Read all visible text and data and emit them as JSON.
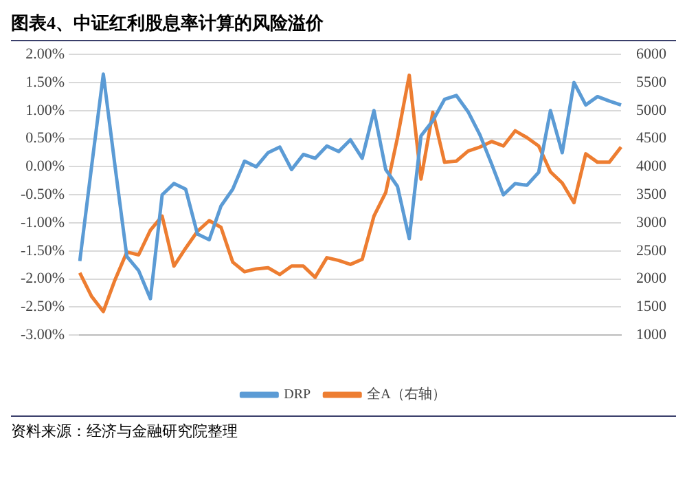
{
  "chart_data": {
    "type": "line",
    "title": "图表4、中证红利股息率计算的风险溢价",
    "annotations": [
      "资料来源：经济与金融研究院整理"
    ],
    "categories": [
      null,
      null,
      null,
      null,
      null,
      null,
      null,
      null,
      null,
      null,
      null,
      null,
      null,
      null,
      null,
      null,
      null,
      null,
      null,
      null,
      null,
      null,
      null,
      null,
      null,
      null,
      null,
      null,
      null,
      null,
      null,
      null,
      null,
      null,
      null,
      null,
      null,
      null,
      null,
      null,
      null,
      null,
      null,
      null,
      null,
      null,
      null
    ],
    "series": [
      {
        "name": "DRP",
        "color": "#5b9bd5",
        "values": [
          -1.68,
          0.0,
          1.65,
          0.0,
          -1.6,
          -1.85,
          -2.35,
          -0.5,
          -0.3,
          -0.4,
          -1.2,
          -1.3,
          -0.7,
          -0.4,
          0.1,
          0.0,
          0.25,
          0.35,
          -0.05,
          0.22,
          0.15,
          0.37,
          0.27,
          0.48,
          0.15,
          1.0,
          -0.05,
          -0.35,
          -1.28,
          0.55,
          0.82,
          1.2,
          1.27,
          0.98,
          0.57,
          0.05,
          -0.5,
          -0.3,
          -0.33,
          -0.1,
          1.0,
          0.25,
          1.5,
          1.1,
          1.25,
          1.17,
          1.1
        ]
      },
      {
        "name": "全A（右轴）",
        "color": "#ed7d31",
        "axis": "y2",
        "values": [
          2110,
          1690,
          1420,
          1990,
          2480,
          2430,
          2870,
          3120,
          2230,
          2550,
          2850,
          3040,
          2920,
          2300,
          2130,
          2180,
          2200,
          2080,
          2230,
          2230,
          2030,
          2380,
          2330,
          2260,
          2350,
          3120,
          3540,
          4520,
          5630,
          3780,
          4970,
          4080,
          4100,
          4280,
          4350,
          4450,
          4370,
          4640,
          4520,
          4370,
          3910,
          3710,
          3360,
          4230,
          4080,
          4080,
          4350
        ]
      }
    ],
    "ylim": [
      -3,
      2
    ],
    "yticks": [
      {
        "value": -3,
        "label": "-3.00%"
      },
      {
        "value": -2.5,
        "label": "-2.50%"
      },
      {
        "value": -2,
        "label": "-2.00%"
      },
      {
        "value": -1.5,
        "label": "-1.50%"
      },
      {
        "value": -1,
        "label": "-1.00%"
      },
      {
        "value": -0.5,
        "label": "-0.50%"
      },
      {
        "value": 0,
        "label": "0.00%"
      },
      {
        "value": 0.5,
        "label": "0.50%"
      },
      {
        "value": 1,
        "label": "1.00%"
      },
      {
        "value": 1.5,
        "label": "1.50%"
      },
      {
        "value": 2,
        "label": "2.00%"
      }
    ],
    "y2lim": [
      1000,
      6000
    ],
    "y2ticks": [
      1000,
      1500,
      2000,
      2500,
      3000,
      3500,
      4000,
      4500,
      5000,
      5500,
      6000
    ],
    "grid": "y",
    "legend": "bottom",
    "marker": "none",
    "line_style": "solid"
  }
}
